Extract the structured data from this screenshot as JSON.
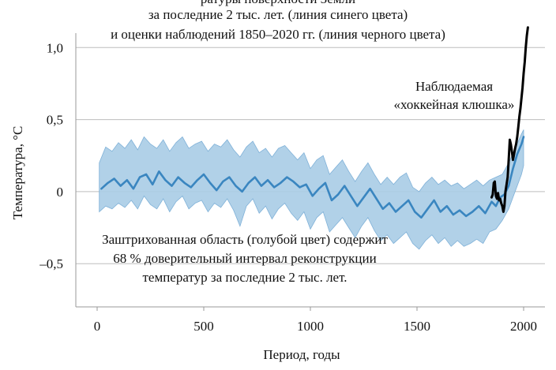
{
  "chart_data": {
    "type": "line",
    "title_lines": [
      "ратуры поверхности Земли",
      "за последние 2 тыс. лет. (линия синего цвета)",
      "и оценки наблюдений 1850–2020 гг. (линия черного цвета)"
    ],
    "xlabel": "Период, годы",
    "ylabel": "Температура, °С",
    "xlim": [
      -100,
      2100
    ],
    "ylim": [
      -0.8,
      1.1
    ],
    "x_ticks": [
      {
        "value": 0,
        "label": "0"
      },
      {
        "value": 500,
        "label": "500"
      },
      {
        "value": 1000,
        "label": "1000"
      },
      {
        "value": 1500,
        "label": "1500"
      },
      {
        "value": 2000,
        "label": "2000"
      }
    ],
    "y_ticks": [
      {
        "value": 1.0,
        "label": "1,0"
      },
      {
        "value": 0.5,
        "label": "0,5"
      },
      {
        "value": 0,
        "label": "0"
      },
      {
        "value": -0.5,
        "label": "–0,5"
      }
    ],
    "horizontal_gridlines": true,
    "annotations": {
      "hockey_stick_line1": "Наблюдаемая",
      "hockey_stick_line2": "«хоккейная клюшка»",
      "band_line1": "Заштрихованная область (голубой цвет) содержит",
      "band_line2": "68 % доверительный интервал реконструкции",
      "band_line3": "температур за последние 2 тыс. лет."
    },
    "colors": {
      "reconstruction": "#3a86c0",
      "band": "#a9cce6",
      "band_edge": "#7fb1d8",
      "observations": "#000000",
      "grid": "#bdbdbd",
      "axis": "#999999"
    },
    "series": [
      {
        "kind": "reconstruction",
        "x": [
          20,
          50,
          80,
          110,
          140,
          170,
          200,
          230,
          260,
          290,
          320,
          350,
          380,
          410,
          440,
          470,
          500,
          530,
          560,
          590,
          620,
          650,
          680,
          710,
          740,
          770,
          800,
          830,
          860,
          890,
          920,
          950,
          980,
          1010,
          1040,
          1070,
          1100,
          1130,
          1160,
          1190,
          1220,
          1250,
          1280,
          1310,
          1340,
          1370,
          1400,
          1430,
          1460,
          1490,
          1520,
          1550,
          1580,
          1610,
          1640,
          1670,
          1700,
          1730,
          1760,
          1790,
          1820,
          1850,
          1870,
          1890,
          1910,
          1930,
          1950,
          1970,
          1990,
          2000
        ],
        "y": [
          0.02,
          0.06,
          0.09,
          0.04,
          0.08,
          0.02,
          0.1,
          0.12,
          0.05,
          0.14,
          0.08,
          0.04,
          0.1,
          0.06,
          0.03,
          0.08,
          0.12,
          0.06,
          0.01,
          0.07,
          0.1,
          0.04,
          0.0,
          0.06,
          0.1,
          0.04,
          0.08,
          0.03,
          0.06,
          0.1,
          0.07,
          0.03,
          0.05,
          -0.03,
          0.02,
          0.06,
          -0.06,
          -0.02,
          0.04,
          -0.03,
          -0.1,
          -0.04,
          0.02,
          -0.05,
          -0.12,
          -0.08,
          -0.14,
          -0.1,
          -0.06,
          -0.14,
          -0.18,
          -0.12,
          -0.06,
          -0.14,
          -0.1,
          -0.16,
          -0.13,
          -0.17,
          -0.14,
          -0.1,
          -0.15,
          -0.07,
          -0.1,
          -0.04,
          -0.02,
          0.04,
          0.16,
          0.26,
          0.33,
          0.38
        ]
      },
      {
        "kind": "band",
        "x": [
          10,
          40,
          70,
          100,
          130,
          160,
          190,
          220,
          250,
          280,
          310,
          340,
          370,
          400,
          430,
          460,
          490,
          520,
          550,
          580,
          610,
          640,
          670,
          700,
          730,
          760,
          790,
          820,
          850,
          880,
          910,
          940,
          970,
          1000,
          1030,
          1060,
          1090,
          1120,
          1150,
          1180,
          1210,
          1240,
          1270,
          1300,
          1330,
          1360,
          1390,
          1420,
          1450,
          1480,
          1510,
          1540,
          1570,
          1600,
          1630,
          1660,
          1690,
          1720,
          1750,
          1780,
          1810,
          1840,
          1870,
          1900,
          1930,
          1960,
          1990,
          2000
        ],
        "upper": [
          0.2,
          0.31,
          0.28,
          0.34,
          0.3,
          0.36,
          0.29,
          0.38,
          0.33,
          0.3,
          0.36,
          0.28,
          0.34,
          0.38,
          0.3,
          0.33,
          0.35,
          0.28,
          0.33,
          0.31,
          0.36,
          0.29,
          0.24,
          0.31,
          0.35,
          0.27,
          0.3,
          0.24,
          0.3,
          0.32,
          0.27,
          0.22,
          0.27,
          0.16,
          0.22,
          0.25,
          0.12,
          0.17,
          0.22,
          0.14,
          0.07,
          0.14,
          0.2,
          0.12,
          0.05,
          0.1,
          0.05,
          0.1,
          0.13,
          0.03,
          0.0,
          0.06,
          0.1,
          0.05,
          0.08,
          0.04,
          0.06,
          0.02,
          0.05,
          0.08,
          0.04,
          0.08,
          0.1,
          0.12,
          0.2,
          0.3,
          0.4,
          0.43
        ],
        "lower": [
          -0.14,
          -0.1,
          -0.12,
          -0.08,
          -0.11,
          -0.06,
          -0.12,
          -0.03,
          -0.09,
          -0.12,
          -0.05,
          -0.14,
          -0.07,
          -0.03,
          -0.12,
          -0.08,
          -0.06,
          -0.14,
          -0.08,
          -0.11,
          -0.05,
          -0.13,
          -0.24,
          -0.1,
          -0.05,
          -0.15,
          -0.1,
          -0.19,
          -0.12,
          -0.08,
          -0.15,
          -0.2,
          -0.14,
          -0.26,
          -0.18,
          -0.14,
          -0.28,
          -0.23,
          -0.18,
          -0.25,
          -0.32,
          -0.24,
          -0.18,
          -0.27,
          -0.34,
          -0.3,
          -0.36,
          -0.32,
          -0.28,
          -0.36,
          -0.4,
          -0.34,
          -0.3,
          -0.36,
          -0.32,
          -0.38,
          -0.34,
          -0.38,
          -0.36,
          -0.33,
          -0.36,
          -0.28,
          -0.26,
          -0.2,
          -0.12,
          0.0,
          0.12,
          0.18
        ]
      },
      {
        "kind": "observations",
        "x": [
          1850,
          1855,
          1860,
          1865,
          1870,
          1875,
          1880,
          1885,
          1890,
          1895,
          1900,
          1905,
          1910,
          1915,
          1920,
          1925,
          1930,
          1935,
          1940,
          1945,
          1950,
          1955,
          1960,
          1965,
          1970,
          1975,
          1980,
          1985,
          1990,
          1995,
          2000,
          2005,
          2010,
          2015,
          2020
        ],
        "y": [
          -0.04,
          -0.02,
          0.06,
          0.07,
          -0.03,
          -0.05,
          -0.01,
          -0.06,
          -0.05,
          -0.08,
          -0.1,
          -0.14,
          -0.1,
          0.0,
          0.05,
          0.1,
          0.22,
          0.36,
          0.33,
          0.28,
          0.22,
          0.26,
          0.3,
          0.33,
          0.38,
          0.45,
          0.52,
          0.58,
          0.65,
          0.72,
          0.82,
          0.9,
          1.0,
          1.08,
          1.14
        ]
      }
    ]
  }
}
